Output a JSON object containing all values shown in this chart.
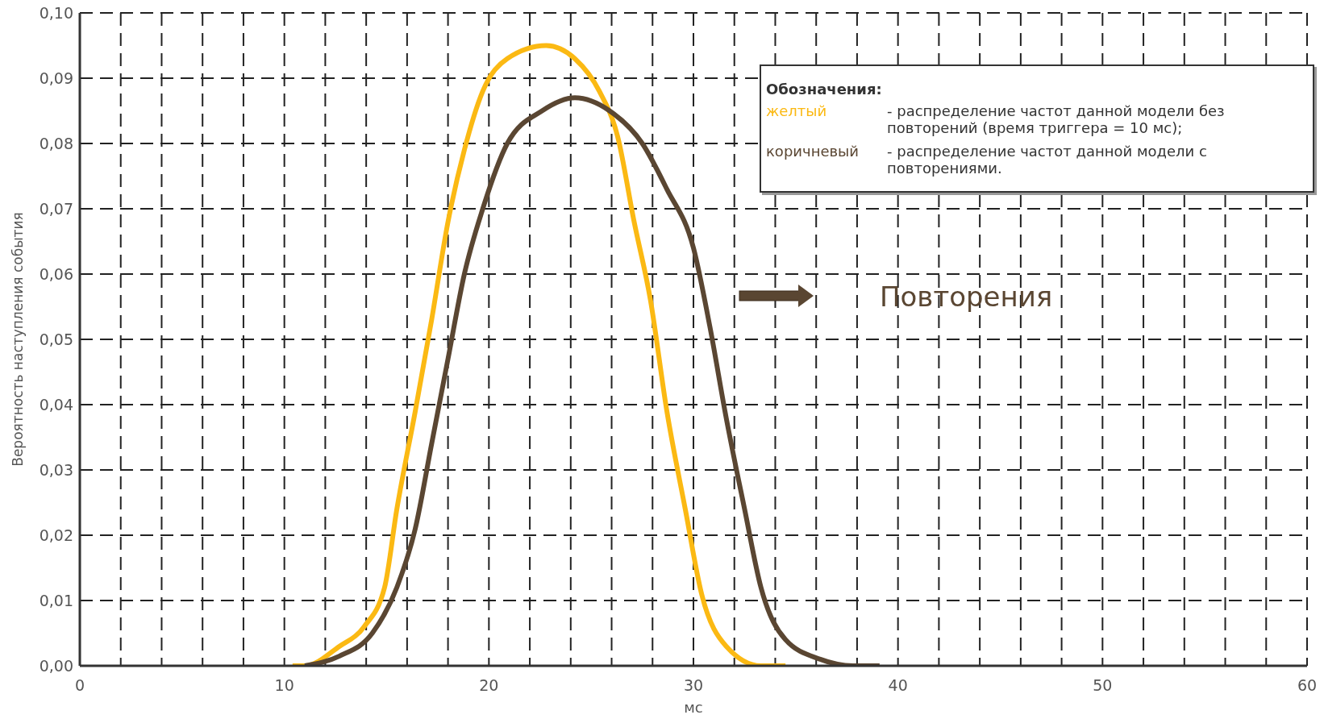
{
  "chart_data": {
    "type": "line",
    "xlabel": "мс",
    "ylabel": "Вероятность наступления события",
    "legend_title": "Обозначения:",
    "legend": "top right",
    "grid": true,
    "line_style": "solid",
    "xlim": [
      0,
      60
    ],
    "xticks": [
      0,
      {
        "value": 2,
        "label": null
      },
      {
        "value": 4,
        "label": null
      },
      {
        "value": 6,
        "label": null
      },
      {
        "value": 8,
        "label": null
      },
      10,
      {
        "value": 12,
        "label": null
      },
      {
        "value": 14,
        "label": null
      },
      {
        "value": 16,
        "label": null
      },
      {
        "value": 18,
        "label": null
      },
      20,
      {
        "value": 22,
        "label": null
      },
      {
        "value": 24,
        "label": null
      },
      {
        "value": 26,
        "label": null
      },
      {
        "value": 28,
        "label": null
      },
      30,
      {
        "value": 32,
        "label": null
      },
      {
        "value": 34,
        "label": null
      },
      {
        "value": 36,
        "label": null
      },
      {
        "value": 38,
        "label": null
      },
      40,
      {
        "value": 42,
        "label": null
      },
      {
        "value": 44,
        "label": null
      },
      {
        "value": 46,
        "label": null
      },
      {
        "value": 48,
        "label": null
      },
      50,
      {
        "value": 52,
        "label": null
      },
      {
        "value": 54,
        "label": null
      },
      {
        "value": 56,
        "label": null
      },
      {
        "value": 58,
        "label": null
      },
      60
    ],
    "ylim": [
      0,
      0.1
    ],
    "yticks": [
      {
        "value": 0,
        "label": "0,00"
      },
      {
        "value": 0.01,
        "label": "0,01"
      },
      {
        "value": 0.02,
        "label": "0,02"
      },
      {
        "value": 0.03,
        "label": "0,03"
      },
      {
        "value": 0.04,
        "label": "0,04"
      },
      {
        "value": 0.05,
        "label": "0,05"
      },
      {
        "value": 0.06,
        "label": "0,06"
      },
      {
        "value": 0.07,
        "label": "0,07"
      },
      {
        "value": 0.08,
        "label": "0,08"
      },
      {
        "value": 0.09,
        "label": "0,09"
      },
      {
        "value": 0.1,
        "label": "0,10"
      }
    ],
    "series": [
      {
        "name": "желтый",
        "color": "#fbb913",
        "x": [
          10.4,
          11.0,
          12.7,
          13.9,
          14.9,
          15.5,
          16.4,
          17.2,
          18.0,
          18.8,
          19.7,
          20.9,
          22.8,
          24.2,
          25.4,
          26.3,
          27.1,
          27.9,
          28.7,
          29.6,
          30.4,
          31.6,
          33.3,
          34.5
        ],
        "values": [
          0,
          0,
          0.003,
          0.006,
          0.012,
          0.024,
          0.039,
          0.053,
          0.068,
          0.079,
          0.088,
          0.093,
          0.095,
          0.093,
          0.088,
          0.081,
          0.068,
          0.056,
          0.039,
          0.024,
          0.011,
          0.003,
          0,
          0
        ]
      },
      {
        "name": "коричневый",
        "color": "#5a4632",
        "x": [
          11.0,
          12.7,
          14.3,
          15.5,
          16.4,
          17.2,
          18.0,
          18.8,
          19.7,
          20.9,
          22.6,
          24.2,
          25.9,
          27.5,
          28.7,
          30.0,
          30.8,
          31.6,
          32.5,
          33.3,
          34.5,
          36.2,
          37.8,
          39.1
        ],
        "values": [
          0,
          0.0015,
          0.005,
          0.012,
          0.021,
          0.034,
          0.047,
          0.06,
          0.07,
          0.08,
          0.085,
          0.087,
          0.085,
          0.08,
          0.073,
          0.064,
          0.052,
          0.038,
          0.024,
          0.012,
          0.004,
          0.001,
          0,
          0
        ]
      }
    ],
    "annotations": [
      "- распределение частот данной модели без повторений (время триггера = 10 мс);",
      "- распределение частот данной модели с повторениями.",
      "Повторения"
    ]
  }
}
